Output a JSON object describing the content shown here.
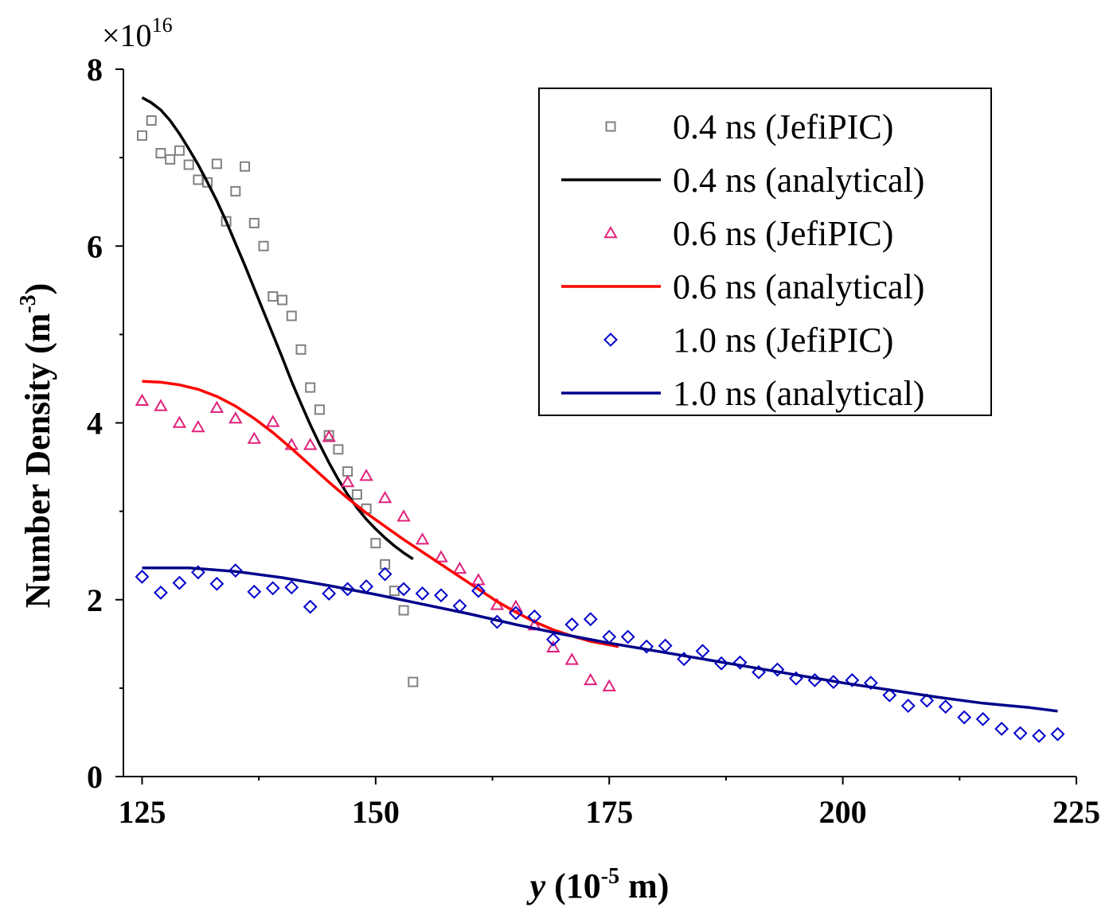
{
  "chart_data": {
    "type": "scatter",
    "title": "",
    "xlabel": {
      "italic": "y",
      "main": "(10",
      "sup": "-5",
      "tail": " m)"
    },
    "ylabel": {
      "main": "Number Density (m",
      "sup": "-3",
      "tail": ")"
    },
    "y_multiplier": {
      "prefix": "×10",
      "sup": "16"
    },
    "xlim": [
      123,
      225
    ],
    "ylim": [
      0,
      8
    ],
    "xticks": [
      125,
      150,
      175,
      200,
      225
    ],
    "xtick_labels": [
      "125",
      "150",
      "175",
      "200",
      "225"
    ],
    "yticks": [
      0,
      2,
      4,
      6,
      8
    ],
    "ytick_labels": [
      "0",
      "2",
      "4",
      "6",
      "8"
    ],
    "grid": false,
    "legend_position": "top-right",
    "series": [
      {
        "name": "0.4 ns (JefiPIC)",
        "kind": "points",
        "marker": "square",
        "color": "#808080",
        "x": [
          125,
          126,
          127,
          128,
          129,
          130,
          131,
          132,
          133,
          134,
          135,
          136,
          137,
          138,
          139,
          140,
          141,
          142,
          143,
          144,
          145,
          146,
          147,
          148,
          149,
          150,
          151,
          152,
          153,
          154
        ],
        "y": [
          7.25,
          7.42,
          7.05,
          6.98,
          7.08,
          6.92,
          6.75,
          6.72,
          6.93,
          6.28,
          6.62,
          6.9,
          6.26,
          6.0,
          5.43,
          5.39,
          5.21,
          4.83,
          4.4,
          4.15,
          3.86,
          3.7,
          3.45,
          3.19,
          3.03,
          2.64,
          2.4,
          2.1,
          1.88,
          1.07
        ]
      },
      {
        "name": "0.4 ns (analytical)",
        "kind": "line",
        "color": "#000000",
        "x": [
          125,
          126,
          127,
          128,
          129,
          130,
          131,
          132,
          133,
          134,
          135,
          136,
          137,
          138,
          139,
          140,
          141,
          142,
          143,
          144,
          145,
          146,
          147,
          148,
          149,
          150,
          151,
          152,
          153,
          154
        ],
        "y": [
          7.68,
          7.62,
          7.54,
          7.42,
          7.27,
          7.1,
          6.92,
          6.72,
          6.51,
          6.28,
          6.03,
          5.78,
          5.52,
          5.26,
          5.0,
          4.74,
          4.47,
          4.22,
          3.98,
          3.76,
          3.55,
          3.36,
          3.19,
          3.04,
          2.91,
          2.8,
          2.7,
          2.61,
          2.53,
          2.46
        ]
      },
      {
        "name": "0.6 ns (JefiPIC)",
        "kind": "points",
        "marker": "triangle",
        "color": "#e0207a",
        "x": [
          125,
          127,
          129,
          131,
          133,
          135,
          137,
          139,
          141,
          143,
          145,
          147,
          149,
          151,
          153,
          155,
          157,
          159,
          161,
          163,
          165,
          167,
          169,
          171,
          173,
          175
        ],
        "y": [
          4.25,
          4.19,
          4.0,
          3.95,
          4.17,
          4.05,
          3.82,
          4.01,
          3.75,
          3.75,
          3.84,
          3.33,
          3.4,
          3.15,
          2.94,
          2.68,
          2.48,
          2.35,
          2.22,
          1.94,
          1.92,
          1.71,
          1.46,
          1.32,
          1.09,
          1.02
        ]
      },
      {
        "name": "0.6 ns (analytical)",
        "kind": "line",
        "color": "#ff0000",
        "x": [
          125,
          127,
          129,
          131,
          133,
          135,
          137,
          139,
          141,
          143,
          145,
          147,
          149,
          151,
          153,
          155,
          157,
          159,
          161,
          163,
          165,
          167,
          169,
          171,
          173,
          175,
          176
        ],
        "y": [
          4.47,
          4.46,
          4.43,
          4.38,
          4.3,
          4.19,
          4.05,
          3.89,
          3.71,
          3.52,
          3.33,
          3.15,
          2.98,
          2.83,
          2.68,
          2.54,
          2.4,
          2.26,
          2.12,
          1.98,
          1.86,
          1.75,
          1.66,
          1.59,
          1.53,
          1.49,
          1.47
        ]
      },
      {
        "name": "1.0 ns (JefiPIC)",
        "kind": "points",
        "marker": "diamond",
        "color": "#0000cc",
        "x": [
          125,
          127,
          129,
          131,
          133,
          135,
          137,
          139,
          141,
          143,
          145,
          147,
          149,
          151,
          153,
          155,
          157,
          159,
          161,
          163,
          165,
          167,
          169,
          171,
          173,
          175,
          177,
          179,
          181,
          183,
          185,
          187,
          189,
          191,
          193,
          195,
          197,
          199,
          201,
          203,
          205,
          207,
          209,
          211,
          213,
          215,
          217,
          219,
          221,
          223
        ],
        "y": [
          2.26,
          2.08,
          2.19,
          2.31,
          2.18,
          2.33,
          2.09,
          2.13,
          2.14,
          1.92,
          2.07,
          2.12,
          2.15,
          2.29,
          2.12,
          2.07,
          2.05,
          1.93,
          2.1,
          1.75,
          1.85,
          1.81,
          1.55,
          1.72,
          1.78,
          1.58,
          1.58,
          1.47,
          1.48,
          1.33,
          1.42,
          1.28,
          1.29,
          1.18,
          1.21,
          1.11,
          1.09,
          1.07,
          1.09,
          1.06,
          0.92,
          0.8,
          0.86,
          0.79,
          0.67,
          0.65,
          0.54,
          0.49,
          0.46,
          0.48
        ]
      },
      {
        "name": "1.0 ns (analytical)",
        "kind": "line",
        "color": "#00008b",
        "x": [
          125,
          130,
          135,
          140,
          145,
          150,
          155,
          160,
          165,
          170,
          175,
          180,
          185,
          190,
          195,
          200,
          205,
          210,
          215,
          220,
          223
        ],
        "y": [
          2.36,
          2.36,
          2.32,
          2.25,
          2.16,
          2.06,
          1.95,
          1.84,
          1.72,
          1.61,
          1.51,
          1.42,
          1.33,
          1.24,
          1.15,
          1.06,
          0.98,
          0.9,
          0.83,
          0.78,
          0.74
        ]
      }
    ]
  }
}
